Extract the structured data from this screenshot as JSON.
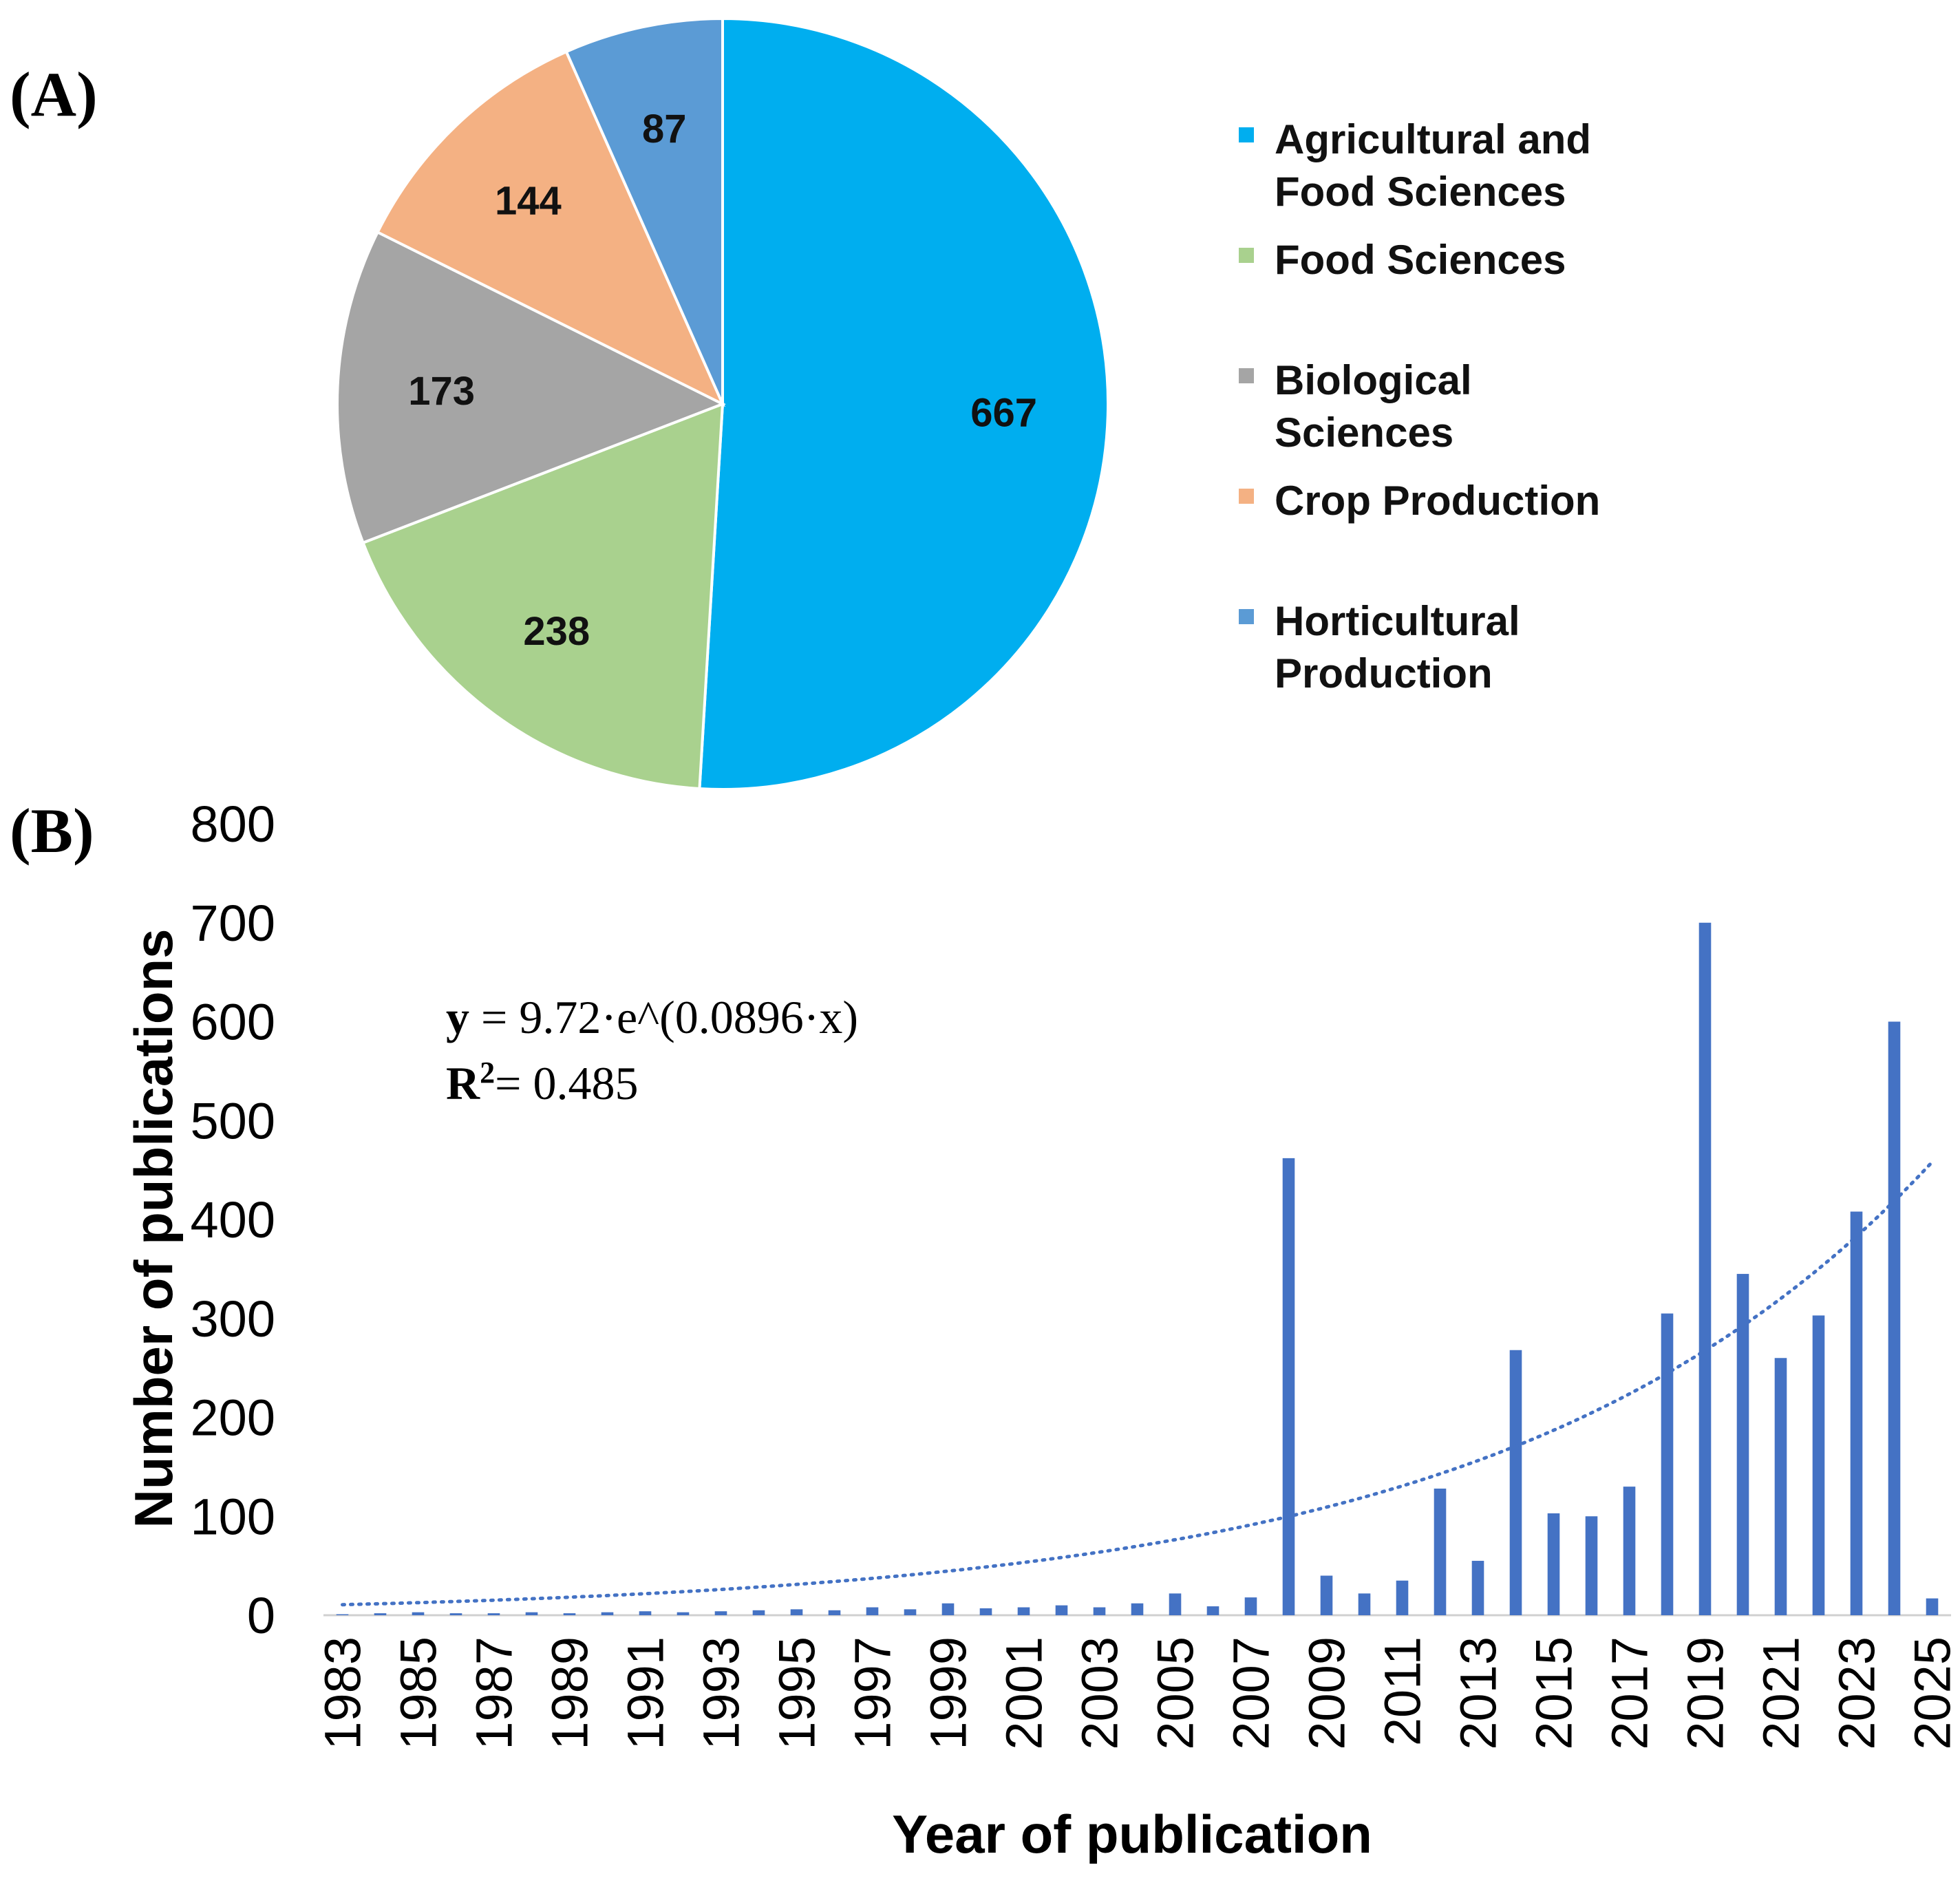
{
  "panel_a_label": "(A)",
  "panel_b_label": "(B)",
  "chart_data": [
    {
      "type": "pie",
      "panel": "(A)",
      "slices": [
        {
          "name": "Agricultural and Food Sciences",
          "legend_lines": [
            "Agricultural and",
            "Food Sciences"
          ],
          "value": 667,
          "color": "#00AEEF"
        },
        {
          "name": "Food Sciences",
          "legend_lines": [
            "Food Sciences"
          ],
          "value": 238,
          "color": "#A9D18E"
        },
        {
          "name": "Biological Sciences",
          "legend_lines": [
            "Biological",
            "Sciences"
          ],
          "value": 173,
          "color": "#A5A5A5"
        },
        {
          "name": "Crop Production",
          "legend_lines": [
            "Crop Production"
          ],
          "value": 144,
          "color": "#F4B183"
        },
        {
          "name": "Horticultural Production",
          "legend_lines": [
            "Horticultural",
            "Production"
          ],
          "value": 87,
          "color": "#5B9BD5"
        }
      ],
      "legend_position": "right"
    },
    {
      "type": "bar",
      "panel": "(B)",
      "xlabel": "Year of publication",
      "ylabel": "Number of publications",
      "ylim": [
        0,
        800
      ],
      "yticks": [
        0,
        100,
        200,
        300,
        400,
        500,
        600,
        700,
        800
      ],
      "categories": [
        "1983",
        "1984",
        "1985",
        "1986",
        "1987",
        "1988",
        "1989",
        "1990",
        "1991",
        "1992",
        "1993",
        "1994",
        "1995",
        "1996",
        "1997",
        "1998",
        "1999",
        "2000",
        "2001",
        "2002",
        "2003",
        "2004",
        "2005",
        "2006",
        "2007",
        "2008",
        "2009",
        "2010",
        "2011",
        "2012",
        "2013",
        "2014",
        "2015",
        "2016",
        "2017",
        "2018",
        "2019",
        "2020",
        "2021",
        "2022",
        "2023",
        "2024",
        "2025"
      ],
      "xtick_labels": [
        "1983",
        "1985",
        "1987",
        "1989",
        "1991",
        "1993",
        "1995",
        "1997",
        "1999",
        "2001",
        "2003",
        "2005",
        "2007",
        "2009",
        "2011",
        "2013",
        "2015",
        "2017",
        "2019",
        "2021",
        "2023",
        "2025"
      ],
      "values": [
        1,
        2,
        3,
        2,
        2,
        3,
        2,
        3,
        4,
        3,
        4,
        5,
        6,
        5,
        8,
        6,
        12,
        7,
        8,
        10,
        8,
        12,
        22,
        9,
        18,
        462,
        40,
        22,
        35,
        128,
        55,
        268,
        103,
        100,
        130,
        305,
        700,
        345,
        260,
        303,
        408,
        600,
        17
      ],
      "bar_color": "#4472C4",
      "trendline": {
        "type": "exponential",
        "a": 9.72,
        "b": 0.0896,
        "style": "dotted",
        "color": "#4472C4"
      },
      "equation": {
        "y_prefix": "y",
        "y_rest": " = 9.72·e^(0.0896·x)",
        "r2_prefix": "R",
        "r2_sup": "2",
        "r2_rest": "= 0.485"
      },
      "grid": false
    }
  ]
}
